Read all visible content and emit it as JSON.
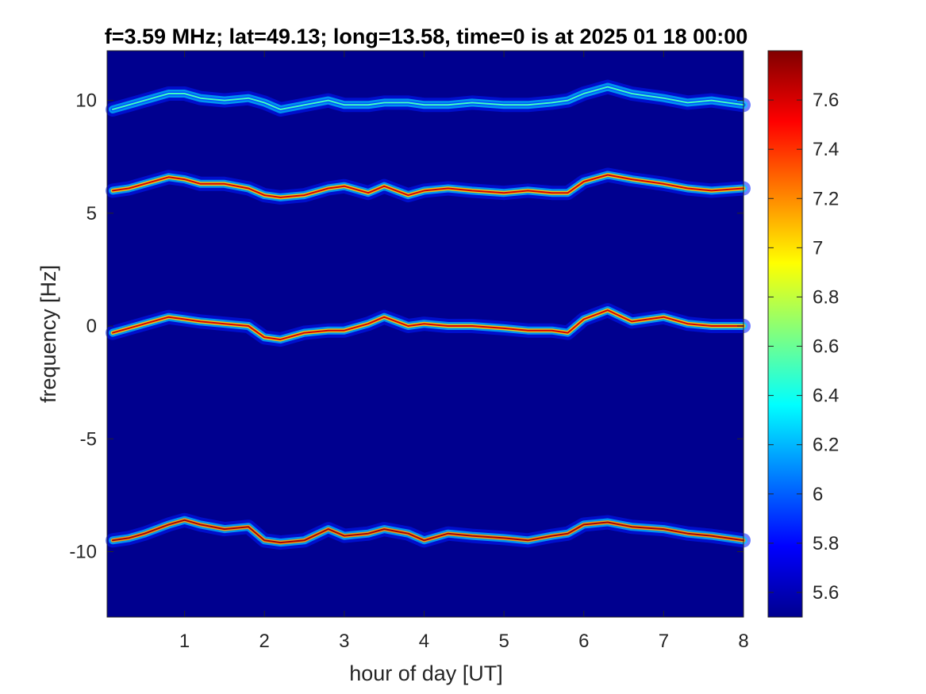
{
  "chart_data": {
    "type": "heatmap",
    "title": "f=3.59 MHz;  lat=49.13; long=13.58, time=0 is at 2025 01 18 00:00",
    "xlabel": "hour of day [UT]",
    "ylabel": "frequency [Hz]",
    "xlim": [
      0.03,
      8.0
    ],
    "ylim": [
      -12.9,
      12.2
    ],
    "x_ticks": [
      1,
      2,
      3,
      4,
      5,
      6,
      7,
      8
    ],
    "y_ticks": [
      10,
      5,
      0,
      -5,
      -10
    ],
    "colorbar": {
      "label": "",
      "range": [
        5.5,
        7.8
      ],
      "ticks": [
        7.6,
        7.4,
        7.2,
        7,
        6.8,
        6.6,
        6.4,
        6.2,
        6,
        5.8,
        5.6
      ],
      "colormap": "jet"
    },
    "background_value": 5.5,
    "series": [
      {
        "x": [
          0.1,
          0.3,
          0.5,
          0.8,
          1.0,
          1.2,
          1.5,
          1.8,
          2.0,
          2.2,
          2.5,
          2.8,
          3.0,
          3.3,
          3.5,
          3.8,
          4.0,
          4.3,
          4.6,
          5.0,
          5.3,
          5.6,
          5.8,
          6.0,
          6.3,
          6.6,
          7.0,
          7.3,
          7.6,
          8.0
        ],
        "y": [
          9.6,
          9.8,
          10.0,
          10.3,
          10.3,
          10.1,
          10.0,
          10.1,
          9.9,
          9.6,
          9.8,
          10.0,
          9.8,
          9.8,
          9.9,
          9.9,
          9.8,
          9.8,
          9.9,
          9.8,
          9.8,
          9.9,
          10.0,
          10.3,
          10.6,
          10.3,
          10.1,
          9.9,
          10.0,
          9.8
        ],
        "peak": 6.5
      },
      {
        "x": [
          0.1,
          0.3,
          0.5,
          0.8,
          1.0,
          1.2,
          1.5,
          1.8,
          2.0,
          2.2,
          2.5,
          2.8,
          3.0,
          3.3,
          3.5,
          3.8,
          4.0,
          4.3,
          4.6,
          5.0,
          5.3,
          5.6,
          5.8,
          6.0,
          6.3,
          6.6,
          7.0,
          7.3,
          7.6,
          8.0
        ],
        "y": [
          6.0,
          6.1,
          6.3,
          6.6,
          6.5,
          6.3,
          6.3,
          6.1,
          5.8,
          5.7,
          5.8,
          6.1,
          6.2,
          5.9,
          6.2,
          5.8,
          6.0,
          6.1,
          6.0,
          5.9,
          6.0,
          5.9,
          5.9,
          6.4,
          6.7,
          6.5,
          6.3,
          6.1,
          6.0,
          6.1
        ],
        "peak": 7.6
      },
      {
        "x": [
          0.1,
          0.3,
          0.5,
          0.8,
          1.0,
          1.2,
          1.5,
          1.8,
          2.0,
          2.2,
          2.5,
          2.8,
          3.0,
          3.3,
          3.5,
          3.8,
          4.0,
          4.3,
          4.6,
          5.0,
          5.3,
          5.6,
          5.8,
          6.0,
          6.3,
          6.6,
          7.0,
          7.3,
          7.6,
          8.0
        ],
        "y": [
          -0.3,
          -0.1,
          0.1,
          0.4,
          0.3,
          0.2,
          0.1,
          0.0,
          -0.5,
          -0.6,
          -0.3,
          -0.2,
          -0.2,
          0.1,
          0.4,
          0.0,
          0.1,
          0.0,
          0.0,
          -0.1,
          -0.2,
          -0.2,
          -0.3,
          0.3,
          0.7,
          0.2,
          0.4,
          0.1,
          0.0,
          0.0
        ],
        "peak": 7.6
      },
      {
        "x": [
          0.1,
          0.3,
          0.5,
          0.8,
          1.0,
          1.2,
          1.5,
          1.8,
          2.0,
          2.2,
          2.5,
          2.8,
          3.0,
          3.3,
          3.5,
          3.8,
          4.0,
          4.3,
          4.6,
          5.0,
          5.3,
          5.6,
          5.8,
          6.0,
          6.3,
          6.6,
          7.0,
          7.3,
          7.6,
          8.0
        ],
        "y": [
          -9.5,
          -9.4,
          -9.2,
          -8.8,
          -8.6,
          -8.8,
          -9.0,
          -8.9,
          -9.5,
          -9.6,
          -9.5,
          -9.0,
          -9.3,
          -9.2,
          -9.0,
          -9.2,
          -9.5,
          -9.2,
          -9.3,
          -9.4,
          -9.5,
          -9.3,
          -9.2,
          -8.8,
          -8.7,
          -8.9,
          -9.0,
          -9.2,
          -9.3,
          -9.5
        ],
        "peak": 7.7
      }
    ]
  }
}
